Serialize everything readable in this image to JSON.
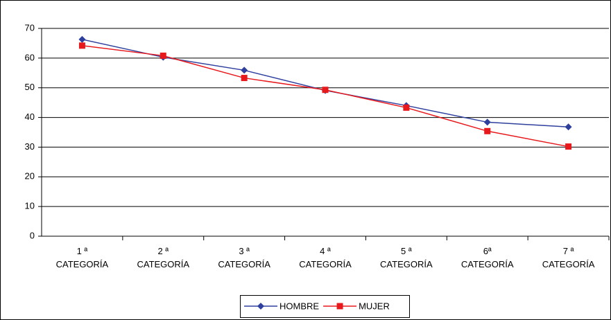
{
  "chart_data": {
    "type": "line",
    "categories": [
      "1 ª\nCATEGORÍA",
      "2 ª\nCATEGORÍA",
      "3 ª\nCATEGORÍA",
      "4 ª\nCATEGORÍA",
      "5 ª\nCATEGORÍA",
      "6ª\nCATEGORÍA",
      "7 ª\nCATEGORÍA"
    ],
    "series": [
      {
        "name": "HOMBRE",
        "color": "#2e3f9e",
        "marker": "diamond",
        "values": [
          66.3,
          60.3,
          55.9,
          49.1,
          44.0,
          38.4,
          36.8
        ]
      },
      {
        "name": "MUJER",
        "color": "#e8191c",
        "marker": "square",
        "values": [
          64.2,
          60.8,
          53.3,
          49.3,
          43.3,
          35.4,
          30.2
        ]
      }
    ],
    "ylim": [
      0,
      70
    ],
    "yticks": [
      0,
      10,
      20,
      30,
      40,
      50,
      60,
      70
    ],
    "grid": true,
    "legend": "bottom"
  }
}
